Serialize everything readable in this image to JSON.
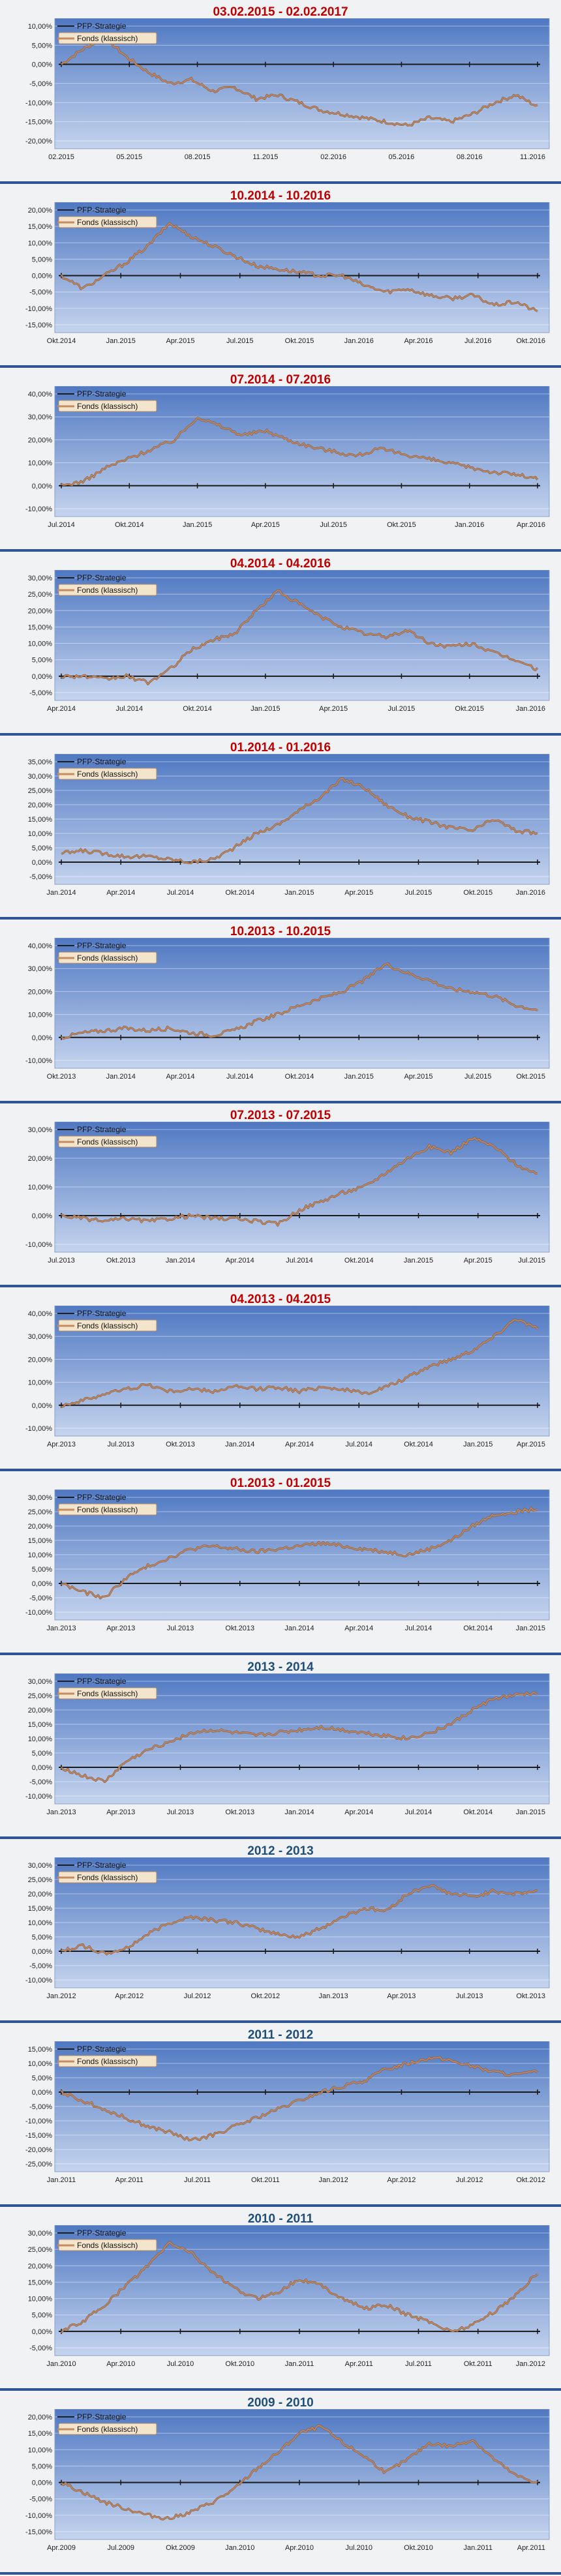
{
  "colors": {
    "separator": "#2f5597",
    "title_red": "#c00000",
    "title_blue": "#1f4e79",
    "fund_line": "#c48b63",
    "fund_line_outline": "#8a5a3a",
    "strategy_line": "#1f1f1f",
    "plot_top": "#4f78c2",
    "plot_bottom": "#c5d4ee"
  },
  "legend": {
    "strategy": "PFP-Strategie",
    "fund": "Fonds (klassisch)"
  },
  "chart_data": [
    {
      "type": "line",
      "title": "03.02.2015 - 02.02.2017",
      "title_color": "red",
      "ylim": [
        -20,
        10
      ],
      "yticks": [
        -20,
        -15,
        -10,
        -5,
        0,
        5,
        10
      ],
      "xticks": [
        "02.2015",
        "05.2015",
        "08.2015",
        "11.2015",
        "02.2016",
        "05.2016",
        "08.2016",
        "11.2016"
      ],
      "series": [
        {
          "name": "PFP-Strategie",
          "values": [
            0,
            0
          ]
        },
        {
          "name": "Fonds (klassisch)",
          "values": [
            0,
            4,
            7,
            2,
            -2,
            -5,
            -4,
            -7,
            -6,
            -9,
            -8,
            -10,
            -12,
            -13,
            -14,
            -15,
            -16,
            -14,
            -15,
            -13,
            -10,
            -8,
            -11
          ]
        }
      ]
    },
    {
      "type": "line",
      "title": "10.2014 - 10.2016",
      "title_color": "red",
      "ylim": [
        -15,
        20
      ],
      "yticks": [
        -15,
        -10,
        -5,
        0,
        5,
        10,
        15,
        20
      ],
      "xticks": [
        "Okt.2014",
        "Jan.2015",
        "Apr.2015",
        "Jul.2015",
        "Okt.2015",
        "Jan.2016",
        "Apr.2016",
        "Jul.2016",
        "Okt.2016"
      ],
      "series": [
        {
          "name": "PFP-Strategie",
          "values": [
            0,
            0
          ]
        },
        {
          "name": "Fonds (klassisch)",
          "values": [
            0,
            -4,
            0,
            4,
            9,
            16,
            12,
            9,
            6,
            3,
            2,
            1,
            0,
            0,
            -3,
            -5,
            -4,
            -6,
            -7,
            -6,
            -9,
            -8,
            -11
          ]
        }
      ]
    },
    {
      "type": "line",
      "title": "07.2014 - 07.2016",
      "title_color": "red",
      "ylim": [
        -10,
        40
      ],
      "yticks": [
        -10,
        0,
        10,
        20,
        30,
        40
      ],
      "xticks": [
        "Jul.2014",
        "Okt.2014",
        "Jan.2015",
        "Apr.2015",
        "Jul.2015",
        "Okt.2015",
        "Jan.2016",
        "Apr.2016"
      ],
      "series": [
        {
          "name": "PFP-Strategie",
          "values": [
            0,
            0
          ]
        },
        {
          "name": "Fonds (klassisch)",
          "values": [
            0,
            2,
            8,
            12,
            16,
            20,
            30,
            26,
            22,
            24,
            20,
            17,
            15,
            13,
            16,
            14,
            12,
            10,
            8,
            6,
            5,
            3
          ]
        }
      ]
    },
    {
      "type": "line",
      "title": "04.2014 - 04.2016",
      "title_color": "red",
      "ylim": [
        -5,
        30
      ],
      "yticks": [
        -5,
        0,
        5,
        10,
        15,
        20,
        25,
        30
      ],
      "xticks": [
        "Apr.2014",
        "Jul.2014",
        "Okt.2014",
        "Jan.2015",
        "Apr.2015",
        "Jul.2015",
        "Okt.2015",
        "Jan.2016"
      ],
      "series": [
        {
          "name": "PFP-Strategie",
          "values": [
            0,
            0
          ]
        },
        {
          "name": "Fonds (klassisch)",
          "values": [
            0,
            0,
            -1,
            0,
            -2,
            2,
            8,
            11,
            13,
            20,
            26,
            22,
            18,
            15,
            13,
            12,
            14,
            10,
            9,
            10,
            7,
            5,
            2
          ]
        }
      ]
    },
    {
      "type": "line",
      "title": "01.2014 - 01.2016",
      "title_color": "red",
      "ylim": [
        -5,
        35
      ],
      "yticks": [
        -5,
        0,
        5,
        10,
        15,
        20,
        25,
        30,
        35
      ],
      "xticks": [
        "Jan.2014",
        "Apr.2014",
        "Jul.2014",
        "Okt.2014",
        "Jan.2015",
        "Apr.2015",
        "Jul.2015",
        "Okt.2015",
        "Jan.2016"
      ],
      "series": [
        {
          "name": "PFP-Strategie",
          "values": [
            0,
            0
          ]
        },
        {
          "name": "Fonds (klassisch)",
          "values": [
            3,
            4,
            3,
            2,
            2,
            1,
            0,
            1,
            5,
            10,
            13,
            18,
            23,
            29,
            26,
            20,
            16,
            14,
            12,
            11,
            15,
            11,
            10
          ]
        }
      ]
    },
    {
      "type": "line",
      "title": "10.2013 - 10.2015",
      "title_color": "red",
      "ylim": [
        -10,
        40
      ],
      "yticks": [
        -10,
        0,
        10,
        20,
        30,
        40
      ],
      "xticks": [
        "Okt.2013",
        "Jan.2014",
        "Apr.2014",
        "Jul.2014",
        "Okt.2014",
        "Jan.2015",
        "Apr.2015",
        "Jul.2015",
        "Okt.2015"
      ],
      "series": [
        {
          "name": "PFP-Strategie",
          "values": [
            0,
            0
          ]
        },
        {
          "name": "Fonds (klassisch)",
          "values": [
            0,
            2,
            3,
            4,
            3,
            4,
            2,
            1,
            3,
            7,
            10,
            14,
            17,
            20,
            25,
            32,
            28,
            25,
            21,
            20,
            18,
            14,
            12
          ]
        }
      ]
    },
    {
      "type": "line",
      "title": "07.2013 - 07.2015",
      "title_color": "red",
      "ylim": [
        -10,
        30
      ],
      "yticks": [
        -10,
        0,
        10,
        20,
        30
      ],
      "xticks": [
        "Jul.2013",
        "Okt.2013",
        "Jan.2014",
        "Apr.2014",
        "Jul.2014",
        "Okt.2014",
        "Jan.2015",
        "Apr.2015",
        "Jul.2015"
      ],
      "series": [
        {
          "name": "PFP-Strategie",
          "values": [
            0,
            0
          ]
        },
        {
          "name": "Fonds (klassisch)",
          "values": [
            0,
            -1,
            -2,
            -1,
            -2,
            -1,
            0,
            -1,
            -1,
            -2,
            -3,
            2,
            5,
            8,
            10,
            15,
            20,
            24,
            22,
            27,
            24,
            18,
            14
          ]
        }
      ]
    },
    {
      "type": "line",
      "title": "04.2013 - 04.2015",
      "title_color": "red",
      "ylim": [
        -10,
        40
      ],
      "yticks": [
        -10,
        0,
        10,
        20,
        30,
        40
      ],
      "xticks": [
        "Apr.2013",
        "Jul.2013",
        "Okt.2013",
        "Jan.2014",
        "Apr.2014",
        "Jul.2014",
        "Okt.2014",
        "Jan.2015",
        "Apr.2015"
      ],
      "series": [
        {
          "name": "PFP-Strategie",
          "values": [
            0,
            0
          ]
        },
        {
          "name": "Fonds (klassisch)",
          "values": [
            0,
            2,
            5,
            7,
            9,
            6,
            7,
            6,
            8,
            7,
            8,
            6,
            8,
            7,
            5,
            8,
            12,
            17,
            20,
            24,
            30,
            38,
            33
          ]
        }
      ]
    },
    {
      "type": "line",
      "title": "01.2013 - 01.2015",
      "title_color": "red",
      "ylim": [
        -10,
        30
      ],
      "yticks": [
        -10,
        -5,
        0,
        5,
        10,
        15,
        20,
        25,
        30
      ],
      "xticks": [
        "Jan.2013",
        "Apr.2013",
        "Jul.2013",
        "Okt.2013",
        "Jan.2014",
        "Apr.2014",
        "Jul.2014",
        "Okt.2014",
        "Jan.2015"
      ],
      "series": [
        {
          "name": "PFP-Strategie",
          "values": [
            0,
            0
          ]
        },
        {
          "name": "Fonds (klassisch)",
          "values": [
            0,
            -3,
            -5,
            2,
            6,
            9,
            12,
            13,
            12,
            11,
            12,
            13,
            14,
            13,
            12,
            11,
            10,
            12,
            15,
            20,
            24,
            25,
            26
          ]
        }
      ]
    },
    {
      "type": "line",
      "title": "2013 - 2014",
      "title_color": "blue",
      "ylim": [
        -10,
        30
      ],
      "yticks": [
        -10,
        -5,
        0,
        5,
        10,
        15,
        20,
        25,
        30
      ],
      "xticks": [
        "Jan.2013",
        "Apr.2013",
        "Jul.2013",
        "Okt.2013",
        "Jan.2014",
        "Apr.2014",
        "Jul.2014",
        "Okt.2014",
        "Jan.2015"
      ],
      "series": [
        {
          "name": "PFP-Strategie",
          "values": [
            0,
            0
          ]
        },
        {
          "name": "Fonds (klassisch)",
          "values": [
            0,
            -3,
            -5,
            2,
            6,
            9,
            12,
            13,
            12,
            11,
            12,
            13,
            14,
            13,
            12,
            11,
            10,
            12,
            15,
            20,
            24,
            25,
            26
          ]
        }
      ]
    },
    {
      "type": "line",
      "title": "2012 - 2013",
      "title_color": "blue",
      "ylim": [
        -10,
        30
      ],
      "yticks": [
        -10,
        -5,
        0,
        5,
        10,
        15,
        20,
        25,
        30
      ],
      "xticks": [
        "Jan.2012",
        "Apr.2012",
        "Jul.2012",
        "Okt.2012",
        "Jan.2013",
        "Apr.2013",
        "Jul.2013",
        "Okt.2013"
      ],
      "series": [
        {
          "name": "PFP-Strategie",
          "values": [
            0,
            0
          ]
        },
        {
          "name": "Fonds (klassisch)",
          "values": [
            0,
            2,
            -1,
            1,
            6,
            10,
            12,
            11,
            10,
            8,
            6,
            5,
            8,
            12,
            15,
            14,
            20,
            23,
            20,
            19,
            21,
            20,
            21
          ]
        }
      ]
    },
    {
      "type": "line",
      "title": "2011 - 2012",
      "title_color": "blue",
      "ylim": [
        -25,
        15
      ],
      "yticks": [
        -25,
        -20,
        -15,
        -10,
        -5,
        0,
        5,
        10,
        15
      ],
      "xticks": [
        "Jan.2011",
        "Apr.2011",
        "Jul.2011",
        "Okt.2011",
        "Jan.2012",
        "Apr.2012",
        "Jul.2012",
        "Okt.2012"
      ],
      "series": [
        {
          "name": "PFP-Strategie",
          "values": [
            0,
            0
          ]
        },
        {
          "name": "Fonds (klassisch)",
          "values": [
            0,
            -3,
            -6,
            -9,
            -12,
            -14,
            -17,
            -15,
            -12,
            -9,
            -6,
            -3,
            0,
            2,
            4,
            8,
            10,
            12,
            11,
            9,
            7,
            6,
            7
          ]
        }
      ]
    },
    {
      "type": "line",
      "title": "2010 - 2011",
      "title_color": "blue",
      "ylim": [
        -5,
        30
      ],
      "yticks": [
        -5,
        0,
        5,
        10,
        15,
        20,
        25,
        30
      ],
      "xticks": [
        "Jan.2010",
        "Apr.2010",
        "Jul.2010",
        "Okt.2010",
        "Jan.2011",
        "Apr.2011",
        "Jul.2011",
        "Okt.2011",
        "Jan.2012"
      ],
      "series": [
        {
          "name": "PFP-Strategie",
          "values": [
            0,
            0
          ]
        },
        {
          "name": "Fonds (klassisch)",
          "values": [
            0,
            3,
            8,
            14,
            20,
            27,
            24,
            18,
            13,
            10,
            12,
            16,
            14,
            10,
            7,
            8,
            5,
            3,
            0,
            2,
            6,
            11,
            18
          ]
        }
      ]
    },
    {
      "type": "line",
      "title": "2009 - 2010",
      "title_color": "blue",
      "ylim": [
        -15,
        20
      ],
      "yticks": [
        -15,
        -10,
        -5,
        0,
        5,
        10,
        15,
        20
      ],
      "xticks": [
        "Apr.2009",
        "Jul.2009",
        "Okt.2009",
        "Jan.2010",
        "Apr.2010",
        "Jul.2010",
        "Okt.2010",
        "Jan.2011",
        "Apr.2011"
      ],
      "series": [
        {
          "name": "PFP-Strategie",
          "values": [
            0,
            0
          ]
        },
        {
          "name": "Fonds (klassisch)",
          "values": [
            0,
            -3,
            -6,
            -8,
            -10,
            -11,
            -9,
            -6,
            -2,
            4,
            9,
            15,
            17,
            12,
            8,
            3,
            7,
            12,
            11,
            13,
            7,
            2,
            0
          ]
        }
      ]
    }
  ]
}
